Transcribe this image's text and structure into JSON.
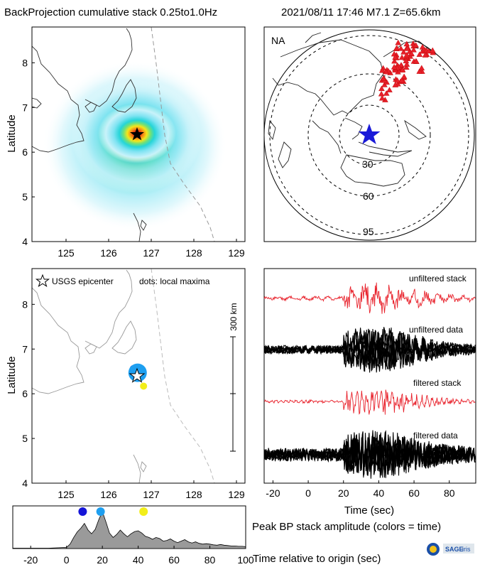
{
  "header": {
    "title": "BackProjection cumulative stack 0.25to1.0Hz",
    "event": "2021/08/11 17:46  M7.1  Z=65.6km"
  },
  "colors": {
    "red": "#e8202a",
    "blue": "#1515d8",
    "star_blue": "#1a1ad8",
    "mid_blue": "#1e9ff0",
    "yellow": "#f2ee1a",
    "gray_fill": "#9a9a9a",
    "coast": "#777777",
    "trench": "#999999"
  },
  "chart_data": [
    {
      "id": "bp-map",
      "type": "heatmap",
      "xlabel": "",
      "ylabel": "Latitude",
      "xlim": [
        124.2,
        129.2
      ],
      "ylim": [
        4.0,
        8.8
      ],
      "xticks": [
        "125",
        "126",
        "127",
        "128",
        "129"
      ],
      "yticks": [
        "4",
        "5",
        "6",
        "7",
        "8"
      ],
      "peak": {
        "lon": 126.7,
        "lat": 6.47
      },
      "epicenter": {
        "lon": 126.7,
        "lat": 6.47
      }
    },
    {
      "id": "station-map",
      "type": "scatter",
      "projection_label": "NA",
      "distance_rings_deg": [
        30,
        60,
        95
      ],
      "ring_labels": [
        "30",
        "60",
        "95"
      ]
    },
    {
      "id": "local-maxima-map",
      "type": "scatter",
      "ylabel": "Latitude",
      "xlim": [
        124.2,
        129.2
      ],
      "ylim": [
        4.0,
        8.8
      ],
      "xticks": [
        "125",
        "126",
        "127",
        "128",
        "129"
      ],
      "yticks": [
        "4",
        "5",
        "6",
        "7",
        "8"
      ],
      "legend_star": "USGS epicenter",
      "legend_dots": "dots: local maxima",
      "scalebar_label": "300 km",
      "points": [
        {
          "lon": 126.58,
          "lat": 6.56,
          "time": 9,
          "color": "#1515d8",
          "size": "small"
        },
        {
          "lon": 126.68,
          "lat": 6.47,
          "time": 19,
          "color": "#1e9ff0",
          "size": "large"
        },
        {
          "lon": 126.82,
          "lat": 6.17,
          "time": 43,
          "color": "#f2ee1a",
          "size": "small"
        }
      ]
    },
    {
      "id": "waveforms",
      "type": "line",
      "xlabel": "Time (sec)",
      "xlim": [
        -25,
        95
      ],
      "xticks": [
        "-20",
        "0",
        "20",
        "40",
        "60",
        "80"
      ],
      "traces": [
        {
          "name": "unfiltered stack",
          "color": "#e8202a"
        },
        {
          "name": "unfiltered data",
          "color": "#000000"
        },
        {
          "name": "filtered stack",
          "color": "#e8202a"
        },
        {
          "name": "filtered data",
          "color": "#000000"
        }
      ]
    },
    {
      "id": "peak-amplitude",
      "type": "area",
      "caption": "Peak BP stack amplitude (colors = time)",
      "xlabel": "Time relative to origin (sec)",
      "xlim": [
        -30,
        100
      ],
      "xticks": [
        "-20",
        "0",
        "20",
        "40",
        "60",
        "80",
        "100"
      ],
      "x": [
        -30,
        -20,
        -10,
        0,
        2,
        4,
        6,
        8,
        10,
        12,
        14,
        16,
        18,
        20,
        22,
        24,
        26,
        28,
        30,
        32,
        34,
        36,
        38,
        40,
        42,
        44,
        46,
        48,
        50,
        52,
        54,
        56,
        58,
        60,
        62,
        64,
        66,
        68,
        70,
        72,
        74,
        76,
        78,
        80,
        82,
        84,
        86,
        88,
        90,
        92,
        94,
        96,
        98,
        100
      ],
      "y": [
        0.01,
        0.01,
        0.01,
        0.03,
        0.12,
        0.3,
        0.45,
        0.55,
        0.68,
        0.5,
        0.4,
        0.52,
        0.78,
        1.0,
        0.72,
        0.42,
        0.3,
        0.38,
        0.5,
        0.4,
        0.32,
        0.4,
        0.46,
        0.48,
        0.42,
        0.33,
        0.3,
        0.25,
        0.3,
        0.27,
        0.2,
        0.22,
        0.26,
        0.2,
        0.16,
        0.2,
        0.24,
        0.18,
        0.15,
        0.18,
        0.14,
        0.12,
        0.13,
        0.12,
        0.1,
        0.09,
        0.11,
        0.09,
        0.08,
        0.07,
        0.07,
        0.06,
        0.06,
        0.05
      ],
      "maxima": [
        {
          "time": 9,
          "color": "#1515d8"
        },
        {
          "time": 19,
          "color": "#1e9ff0"
        },
        {
          "time": 43,
          "color": "#f2ee1a"
        }
      ]
    }
  ],
  "logo": {
    "text": "SAGE",
    "sub": "iris"
  }
}
